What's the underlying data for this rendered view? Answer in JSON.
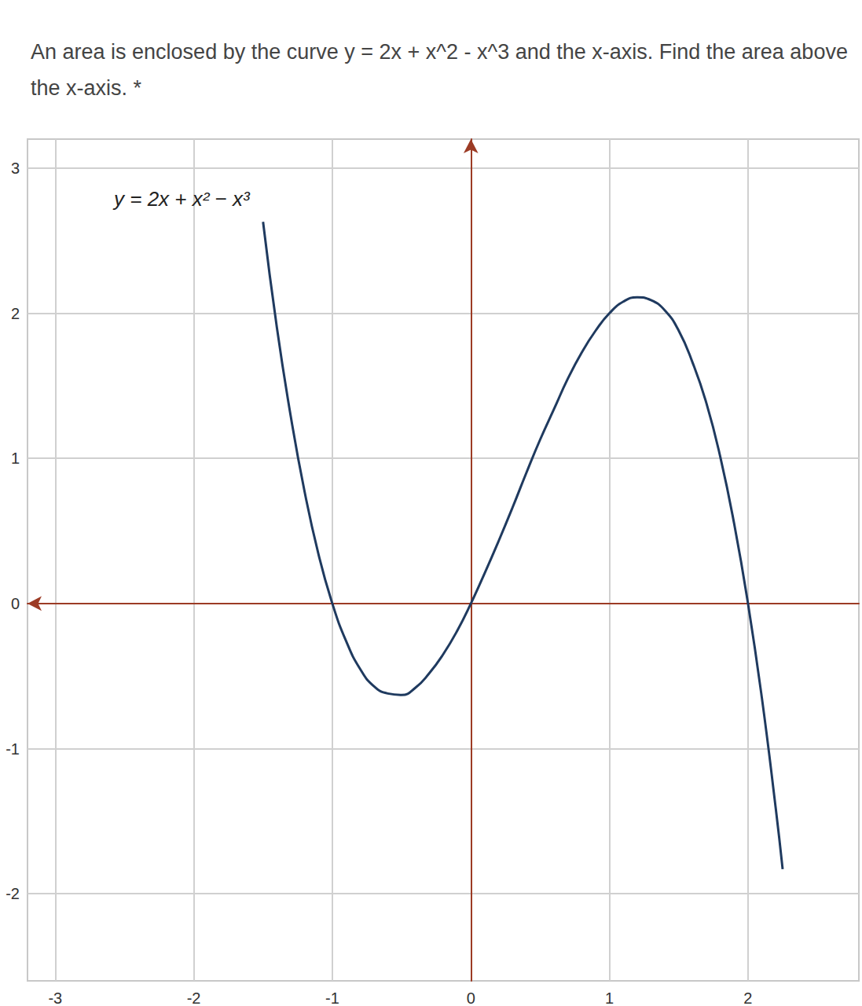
{
  "chart_data": {
    "type": "line",
    "title": "An area is enclosed by the curve y = 2x + x^2 - x^3 and the x-axis. Find the area above the x-axis. *",
    "annotations": [
      "y = 2x + x² − x³"
    ],
    "x": [
      -1.5,
      -1.4,
      -1.3,
      -1.2,
      -1.1,
      -1.0,
      -0.9,
      -0.8,
      -0.7,
      -0.6,
      -0.5,
      -0.4,
      -0.3,
      -0.2,
      -0.1,
      0,
      0.1,
      0.2,
      0.3,
      0.4,
      0.5,
      0.6,
      0.7,
      0.8,
      0.9,
      1.0,
      1.1,
      1.2,
      1.3,
      1.4,
      1.5,
      1.6,
      1.7,
      1.8,
      1.9,
      2.0,
      2.1,
      2.2,
      2.25
    ],
    "values": [
      2.63,
      1.9,
      1.29,
      0.77,
      0.34,
      0,
      -0.26,
      -0.45,
      -0.57,
      -0.62,
      -0.63,
      -0.58,
      -0.48,
      -0.35,
      -0.19,
      0,
      0.21,
      0.43,
      0.66,
      0.9,
      1.13,
      1.34,
      1.55,
      1.73,
      1.88,
      2,
      2.08,
      2.11,
      2.09,
      2.02,
      1.88,
      1.66,
      1.38,
      1.01,
      0.55,
      0,
      -0.65,
      -1.41,
      -1.83
    ],
    "color": "#1f3a5f",
    "xlim": [
      -3.2,
      2.8
    ],
    "xticks": [
      -3,
      -2,
      -1,
      0,
      1,
      2
    ],
    "ylim": [
      -2.6,
      3.2
    ],
    "yticks": [
      -2,
      -1,
      0,
      1,
      2,
      3
    ],
    "grid": true,
    "marker": "none"
  }
}
